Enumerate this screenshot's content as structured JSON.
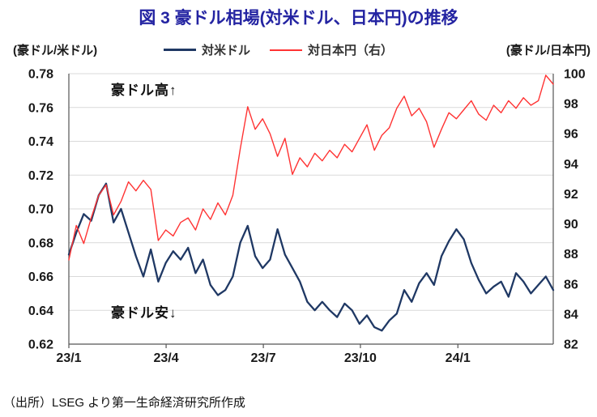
{
  "title": "図 3  豪ドル相場(対米ドル、日本円)の推移",
  "left_axis_label": "(豪ドル/米ドル)",
  "right_axis_label": "(豪ドル/日本円)",
  "legend": [
    {
      "label": "対米ドル",
      "color": "#1f3864"
    },
    {
      "label": "対日本円（右）",
      "color": "#ff3333"
    }
  ],
  "annotations": {
    "high": "豪ドル高↑",
    "low": "豪ドル安↓"
  },
  "source": "（出所）LSEG より第一生命経済研究所作成",
  "chart_data": {
    "type": "line",
    "title": "図 3  豪ドル相場(対米ドル、日本円)の推移",
    "grid": true,
    "legend_position": "top",
    "x_ticks": {
      "labels": [
        "23/1",
        "23/4",
        "23/7",
        "23/10",
        "24/1"
      ],
      "fractions": [
        0,
        0.2008,
        0.4015,
        0.6019,
        0.8031
      ]
    },
    "left_axis": {
      "label": "(豪ドル/米ドル)",
      "min": 0.62,
      "max": 0.78,
      "step": 0.02,
      "tick_labels": [
        "0.78",
        "0.76",
        "0.74",
        "0.72",
        "0.70",
        "0.68",
        "0.66",
        "0.64",
        "0.62"
      ]
    },
    "right_axis": {
      "label": "(豪ドル/日本円)",
      "min": 82,
      "max": 100,
      "step": 2,
      "tick_labels": [
        "100",
        "98",
        "96",
        "94",
        "92",
        "90",
        "88",
        "86",
        "84",
        "82"
      ]
    },
    "x_note": "weekly points from 23/1 through 24/3",
    "series": [
      {
        "name": "対米ドル",
        "axis": "left",
        "color": "#1f3864",
        "width": 2.3,
        "values": [
          0.673,
          0.686,
          0.697,
          0.693,
          0.708,
          0.715,
          0.692,
          0.7,
          0.686,
          0.672,
          0.66,
          0.676,
          0.657,
          0.668,
          0.675,
          0.67,
          0.677,
          0.662,
          0.67,
          0.655,
          0.649,
          0.652,
          0.66,
          0.68,
          0.69,
          0.672,
          0.665,
          0.67,
          0.688,
          0.673,
          0.665,
          0.657,
          0.645,
          0.64,
          0.645,
          0.64,
          0.636,
          0.644,
          0.64,
          0.632,
          0.637,
          0.63,
          0.628,
          0.634,
          0.638,
          0.652,
          0.645,
          0.656,
          0.662,
          0.655,
          0.672,
          0.681,
          0.688,
          0.682,
          0.668,
          0.658,
          0.65,
          0.654,
          0.657,
          0.648,
          0.662,
          0.657,
          0.65,
          0.655,
          0.66,
          0.652
        ]
      },
      {
        "name": "対日本円（右）",
        "axis": "right",
        "color": "#ff3333",
        "width": 1.4,
        "values": [
          87.6,
          89.9,
          88.7,
          90.4,
          91.9,
          92.6,
          90.6,
          91.5,
          92.8,
          92.2,
          92.9,
          92.3,
          88.9,
          89.6,
          89.2,
          90.1,
          90.4,
          89.6,
          91.0,
          90.3,
          91.4,
          90.6,
          91.9,
          95.0,
          97.8,
          96.3,
          97.0,
          96.0,
          94.5,
          95.7,
          93.3,
          94.4,
          93.8,
          94.7,
          94.2,
          94.9,
          94.4,
          95.3,
          94.8,
          95.7,
          96.6,
          94.9,
          95.9,
          96.4,
          97.7,
          98.5,
          97.2,
          97.7,
          96.8,
          95.1,
          96.3,
          97.4,
          97.0,
          97.6,
          98.2,
          97.3,
          96.9,
          97.9,
          97.4,
          98.2,
          97.7,
          98.4,
          97.9,
          98.2,
          99.9,
          99.3
        ]
      }
    ]
  }
}
